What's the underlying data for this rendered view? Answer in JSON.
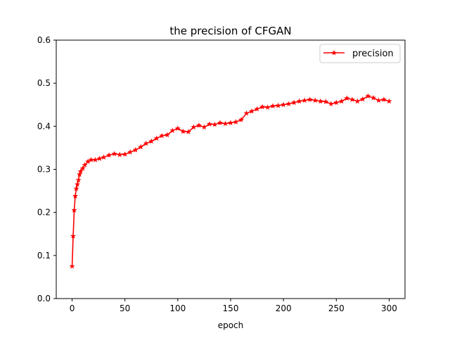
{
  "chart_data": {
    "type": "line",
    "title": "the precision of CFGAN",
    "xlabel": "epoch",
    "ylabel": "",
    "xlim": [
      -15,
      315
    ],
    "ylim": [
      0.0,
      0.6
    ],
    "xticks": [
      0,
      50,
      100,
      150,
      200,
      250,
      300
    ],
    "yticks": [
      0.0,
      0.1,
      0.2,
      0.3,
      0.4,
      0.5,
      0.6
    ],
    "xtick_labels": [
      "0",
      "50",
      "100",
      "150",
      "200",
      "250",
      "300"
    ],
    "ytick_labels": [
      "0.0",
      "0.1",
      "0.2",
      "0.3",
      "0.4",
      "0.5",
      "0.6"
    ],
    "grid": false,
    "legend": "top-right",
    "series": [
      {
        "name": "precision",
        "color": "#ff0000",
        "marker": "star",
        "x": [
          0,
          1,
          2,
          3,
          4,
          5,
          6,
          7,
          8,
          10,
          12,
          15,
          18,
          22,
          26,
          30,
          35,
          40,
          45,
          50,
          55,
          60,
          65,
          70,
          75,
          80,
          85,
          90,
          95,
          100,
          105,
          110,
          115,
          120,
          125,
          130,
          135,
          140,
          145,
          150,
          155,
          160,
          165,
          170,
          175,
          180,
          185,
          190,
          195,
          200,
          205,
          210,
          215,
          220,
          225,
          230,
          235,
          240,
          245,
          250,
          255,
          260,
          265,
          270,
          275,
          280,
          285,
          290,
          295,
          300
        ],
        "y": [
          0.075,
          0.145,
          0.205,
          0.238,
          0.255,
          0.265,
          0.275,
          0.288,
          0.295,
          0.302,
          0.31,
          0.318,
          0.322,
          0.322,
          0.325,
          0.328,
          0.333,
          0.336,
          0.334,
          0.335,
          0.34,
          0.345,
          0.352,
          0.36,
          0.365,
          0.372,
          0.378,
          0.38,
          0.39,
          0.395,
          0.388,
          0.387,
          0.398,
          0.402,
          0.398,
          0.405,
          0.404,
          0.408,
          0.406,
          0.408,
          0.41,
          0.415,
          0.43,
          0.435,
          0.44,
          0.445,
          0.444,
          0.447,
          0.448,
          0.45,
          0.452,
          0.455,
          0.458,
          0.46,
          0.462,
          0.46,
          0.458,
          0.457,
          0.452,
          0.455,
          0.458,
          0.465,
          0.462,
          0.458,
          0.463,
          0.47,
          0.466,
          0.46,
          0.462,
          0.458
        ]
      }
    ]
  }
}
